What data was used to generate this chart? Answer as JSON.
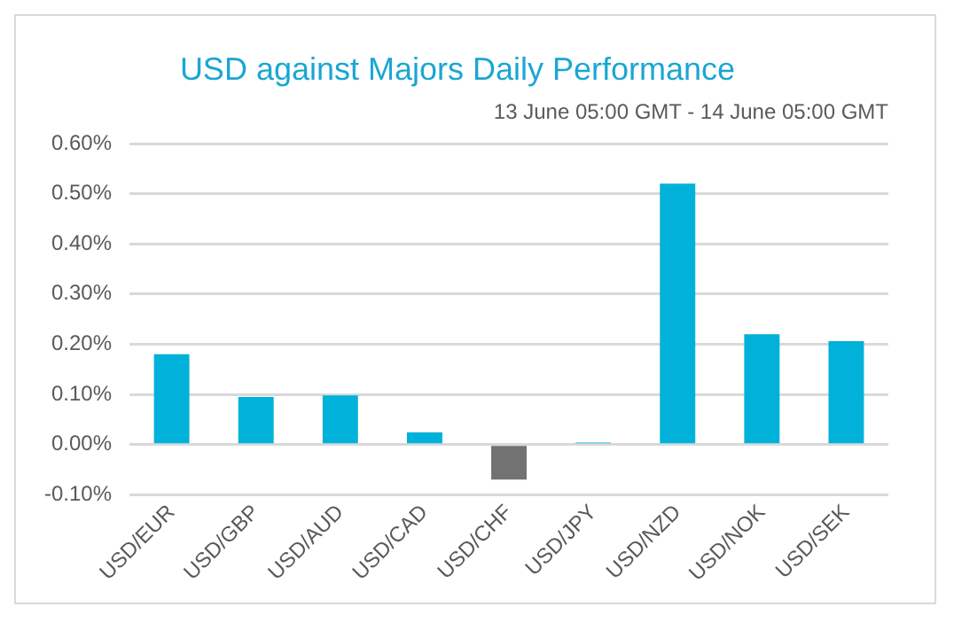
{
  "chart_data": {
    "type": "bar",
    "title": "USD against Majors Daily Performance",
    "subtitle": "13 June 05:00 GMT - 14 June 05:00 GMT",
    "categories": [
      "USD/EUR",
      "USD/GBP",
      "USD/AUD",
      "USD/CAD",
      "USD/CHF",
      "USD/JPY",
      "USD/NZD",
      "USD/NOK",
      "USD/SEK"
    ],
    "values": [
      0.18,
      0.095,
      0.098,
      0.024,
      -0.07,
      0.004,
      0.52,
      0.22,
      0.206
    ],
    "colors": [
      "#00b2d9",
      "#00b2d9",
      "#00b2d9",
      "#00b2d9",
      "#727272",
      "#00b2d9",
      "#00b2d9",
      "#00b2d9",
      "#00b2d9"
    ],
    "ylim": [
      -0.1,
      0.6
    ],
    "yticks": [
      {
        "value": -0.1,
        "label": "-0.10%"
      },
      {
        "value": 0,
        "label": "0.00%"
      },
      {
        "value": 0.1,
        "label": "0.10%"
      },
      {
        "value": 0.2,
        "label": "0.20%"
      },
      {
        "value": 0.3,
        "label": "0.30%"
      },
      {
        "value": 0.4,
        "label": "0.40%"
      },
      {
        "value": 0.5,
        "label": "0.50%"
      },
      {
        "value": 0.6,
        "label": "0.60%"
      }
    ],
    "grid": "y",
    "legend": false
  }
}
